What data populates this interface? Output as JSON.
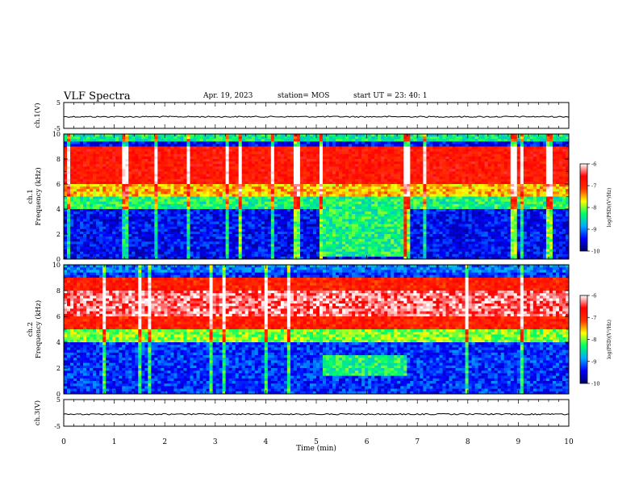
{
  "header": {
    "title": "VLF Spectra",
    "date": "Apr. 19, 2023",
    "station": "station= MOS",
    "start": "start  UT =   23: 40: 1"
  },
  "chart_data": [
    {
      "id": "ch1-waveform",
      "type": "line",
      "ylabel": "ch.1(V)",
      "ylim": [
        -5,
        5
      ],
      "yticks": [
        "5",
        "-5"
      ],
      "xlim": [
        0,
        10
      ],
      "trace_level": -0.5
    },
    {
      "id": "ch1-spectrogram",
      "type": "heatmap",
      "ylabel": "ch.1\nFrequency (kHz)",
      "ylim": [
        0,
        10
      ],
      "yticks": [
        "0",
        "2",
        "4",
        "6",
        "8",
        "10"
      ],
      "xlim": [
        0,
        10
      ],
      "colorbar": {
        "label": "log(PSD)(V²/Hz)",
        "range": [
          -10,
          -6
        ],
        "ticks": [
          "-6",
          "-7",
          "-8",
          "-9",
          "-10"
        ]
      },
      "features": {
        "high_band_khz": [
          5.0,
          9.0
        ],
        "quiet_band_khz": [
          0.5,
          4.0
        ],
        "burst_min": [
          5.1,
          6.8
        ],
        "burst_band_khz": [
          0.2,
          4.2
        ],
        "spike_min": [
          3.5,
          4.6,
          5.1,
          6.8,
          8.9,
          9.6
        ]
      }
    },
    {
      "id": "ch2-spectrogram",
      "type": "heatmap",
      "ylabel": "ch.2\nFrequency (kHz)",
      "ylim": [
        0,
        10
      ],
      "yticks": [
        "0",
        "2",
        "4",
        "6",
        "8",
        "10"
      ],
      "xlim": [
        0,
        10
      ],
      "colorbar": {
        "label": "log(PSD)(V²/Hz)",
        "range": [
          -10,
          -6
        ],
        "ticks": [
          "-6",
          "-7",
          "-8",
          "-9",
          "-10"
        ]
      },
      "features": {
        "high_band_khz": [
          5.0,
          9.0
        ],
        "core_band_khz": [
          6.0,
          8.0
        ],
        "quiet_band_khz": [
          0.5,
          4.0
        ],
        "burst_min": [
          5.1,
          6.8
        ],
        "burst_band_khz": [
          1.5,
          3.0
        ]
      }
    },
    {
      "id": "ch3-waveform",
      "type": "line",
      "ylabel": "ch.3(V)",
      "ylim": [
        -5,
        5
      ],
      "yticks": [
        "5",
        "-5"
      ],
      "xlim": [
        0,
        10
      ],
      "trace_level": -0.5
    }
  ],
  "xaxis": {
    "label": "Time (min)",
    "ticks": [
      "0",
      "1",
      "2",
      "3",
      "4",
      "5",
      "6",
      "7",
      "8",
      "9",
      "10"
    ],
    "range": [
      0,
      10
    ]
  },
  "colormap": [
    "#000066",
    "#0000ff",
    "#00aaff",
    "#00ff66",
    "#ffff00",
    "#ff3300",
    "#ff0000",
    "#ffffff"
  ]
}
